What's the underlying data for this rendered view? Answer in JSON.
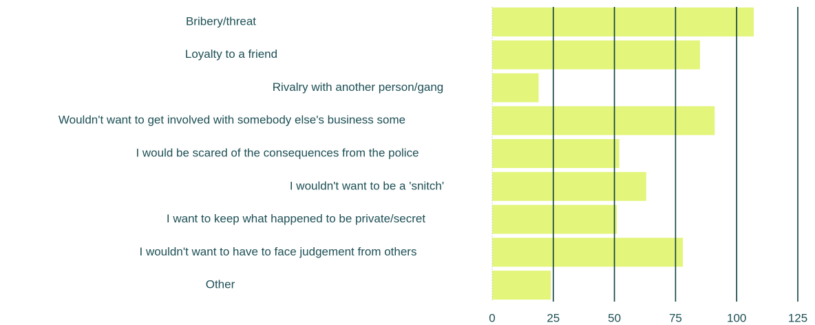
{
  "chart_data": {
    "type": "bar",
    "orientation": "horizontal",
    "categories": [
      "Bribery/threat",
      "Loyalty to a friend",
      "Rivalry with another person/gang",
      "Wouldn't want to get involved with somebody else's business some",
      "I would be scared of the consequences from the police",
      "I wouldn't want to be a 'snitch'",
      "I want to keep what happened to be private/secret",
      "I wouldn't want to have to face judgement from others",
      "Other"
    ],
    "values": [
      107,
      85,
      19,
      91,
      52,
      63,
      51,
      78,
      24
    ],
    "color": "#e3f57a",
    "xlim": [
      0,
      125
    ],
    "xticks": [
      0,
      25,
      50,
      75,
      100,
      125
    ],
    "grid": true
  }
}
